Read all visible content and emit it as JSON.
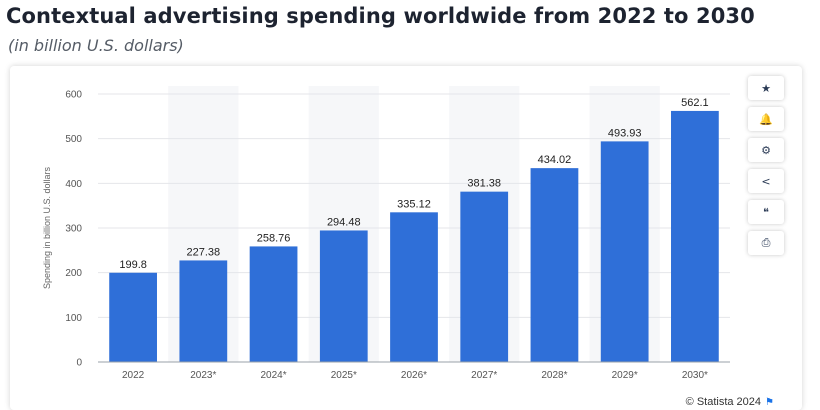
{
  "page": {
    "title": "Contextual advertising spending worldwide from 2022 to 2030",
    "subtitle": "(in billion U.S. dollars)"
  },
  "toolbar": {
    "buttons": [
      {
        "name": "star-icon",
        "glyph": "★"
      },
      {
        "name": "bell-icon",
        "glyph": "🔔"
      },
      {
        "name": "gear-icon",
        "glyph": "⚙"
      },
      {
        "name": "share-icon",
        "glyph": "<"
      },
      {
        "name": "quote-icon",
        "glyph": "❝"
      },
      {
        "name": "print-icon",
        "glyph": "⎙"
      }
    ]
  },
  "source": {
    "credit": "© Statista 2024"
  },
  "colors": {
    "bar": "#2f6fd8",
    "alt_band": "#f6f7f9",
    "grid": "#e4e6ea"
  },
  "chart_data": {
    "type": "bar",
    "categories": [
      "2022",
      "2023*",
      "2024*",
      "2025*",
      "2026*",
      "2027*",
      "2028*",
      "2029*",
      "2030*"
    ],
    "values": [
      199.8,
      227.38,
      258.76,
      294.48,
      335.12,
      381.38,
      434.02,
      493.93,
      562.1
    ],
    "value_labels": [
      "199.8",
      "227.38",
      "258.76",
      "294.48",
      "335.12",
      "381.38",
      "434.02",
      "493.93",
      "562.1"
    ],
    "title": "Contextual advertising spending worldwide from 2022 to 2030",
    "subtitle": "(in billion U.S. dollars)",
    "xlabel": "",
    "ylabel": "Spending in billion U.S. dollars",
    "ylim": [
      0,
      600
    ],
    "yticks": [
      0,
      100,
      200,
      300,
      400,
      500,
      600
    ],
    "grid": true,
    "alternating_bands": true,
    "legend": "none"
  }
}
